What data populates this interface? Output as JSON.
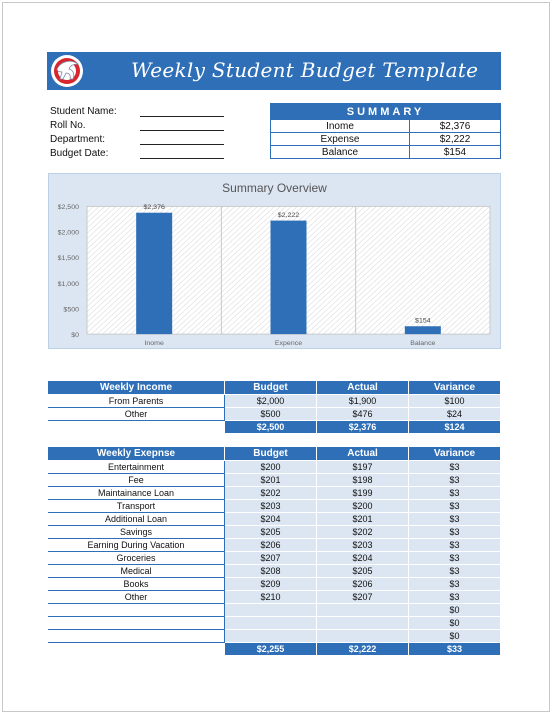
{
  "banner": {
    "title": "Weekly Student Budget Template"
  },
  "info": [
    {
      "label": "Student Name:"
    },
    {
      "label": "Roll No."
    },
    {
      "label": "Department:"
    },
    {
      "label": "Budget Date:"
    }
  ],
  "summary": {
    "heading": "SUMMARY",
    "rows": [
      {
        "label": "Inome",
        "value": "$2,376"
      },
      {
        "label": "Expense",
        "value": "$2,222"
      },
      {
        "label": "Balance",
        "value": "$154"
      }
    ]
  },
  "chart_data": {
    "type": "bar",
    "title": "Summary Overview",
    "categories": [
      "Inome",
      "Expence",
      "Balance"
    ],
    "values": [
      2376,
      2222,
      154
    ],
    "data_labels": [
      "$2,376",
      "$2,222",
      "$154"
    ],
    "ylim": [
      0,
      2500
    ],
    "yticks": [
      0,
      500,
      1000,
      1500,
      2000,
      2500
    ],
    "ytick_labels": [
      "$0",
      "$500",
      "$1,000",
      "$1,500",
      "$2,000",
      "$2,500"
    ],
    "bar_color": "#2e6fb7",
    "grid": true,
    "xlabel": "",
    "ylabel": ""
  },
  "income": {
    "headers": [
      "Weekly Income",
      "Budget",
      "Actual",
      "Variance"
    ],
    "rows": [
      [
        "From Parents",
        "$2,000",
        "$1,900",
        "$100"
      ],
      [
        "Other",
        "$500",
        "$476",
        "$24"
      ]
    ],
    "totals": [
      "",
      "$2,500",
      "$2,376",
      "$124"
    ]
  },
  "expense": {
    "headers": [
      "Weekly Exepnse",
      "Budget",
      "Actual",
      "Variance"
    ],
    "rows": [
      [
        "Entertainment",
        "$200",
        "$197",
        "$3"
      ],
      [
        "Fee",
        "$201",
        "$198",
        "$3"
      ],
      [
        "Maintainance Loan",
        "$202",
        "$199",
        "$3"
      ],
      [
        "Transport",
        "$203",
        "$200",
        "$3"
      ],
      [
        "Additional Loan",
        "$204",
        "$201",
        "$3"
      ],
      [
        "Savings",
        "$205",
        "$202",
        "$3"
      ],
      [
        "Earning During Vacation",
        "$206",
        "$203",
        "$3"
      ],
      [
        "Groceries",
        "$207",
        "$204",
        "$3"
      ],
      [
        "Medical",
        "$208",
        "$205",
        "$3"
      ],
      [
        "Books",
        "$209",
        "$206",
        "$3"
      ],
      [
        "Other",
        "$210",
        "$207",
        "$3"
      ],
      [
        "",
        "",
        "",
        "$0"
      ],
      [
        "",
        "",
        "",
        "$0"
      ],
      [
        "",
        "",
        "",
        "$0"
      ]
    ],
    "totals": [
      "",
      "$2,255",
      "$2,222",
      "$33"
    ]
  },
  "colors": {
    "accent": "#2e6fb7",
    "cell_fill": "#dce6f2",
    "logo_red": "#d8262e"
  }
}
